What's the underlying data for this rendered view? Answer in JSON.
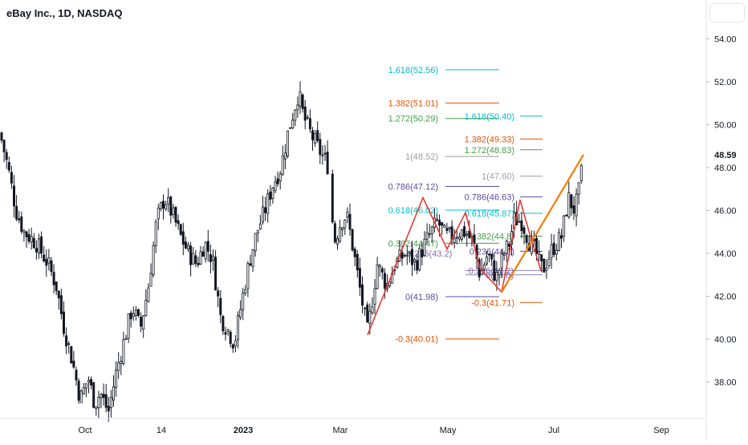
{
  "header": {
    "title": "eBay Inc., 1D, NASDAQ"
  },
  "price_axis": {
    "ticks": [
      "54.00",
      "52.00",
      "50.00",
      "48.00",
      "46.00",
      "44.00",
      "42.00",
      "40.00",
      "38.00"
    ],
    "last_price": "48.59"
  },
  "time_axis": {
    "ticks": [
      "Oct",
      "14",
      "2023",
      "Mar",
      "May",
      "Jul",
      "Sep"
    ]
  },
  "colors": {
    "up": "#131722",
    "down": "#131722",
    "orange": "#f57c00",
    "red": "#e53935",
    "teal": "#00bcd4",
    "green": "#43a047",
    "purple": "#5e4b9c",
    "gray": "#9e9e9e",
    "darkorange": "#e65100"
  },
  "chart_data": {
    "type": "candlestick",
    "symbol": "eBay Inc., 1D, NASDAQ",
    "y_range": [
      36.2,
      54.8
    ],
    "x_ticks": [
      "Oct",
      "14",
      "2023",
      "Mar",
      "May",
      "Jul",
      "Sep"
    ],
    "y_ticks": [
      54,
      52,
      50,
      48,
      46,
      44,
      42,
      40,
      38
    ],
    "last_price": 48.59,
    "price_path": [
      [
        0,
        49.6
      ],
      [
        10,
        48.0
      ],
      [
        20,
        46.0
      ],
      [
        30,
        45.0
      ],
      [
        45,
        44.5
      ],
      [
        60,
        43.5
      ],
      [
        70,
        42.5
      ],
      [
        80,
        40.5
      ],
      [
        90,
        39.0
      ],
      [
        100,
        37.2
      ],
      [
        110,
        38.2
      ],
      [
        118,
        37.0
      ],
      [
        125,
        37.5
      ],
      [
        135,
        36.6
      ],
      [
        145,
        38.5
      ],
      [
        155,
        40.0
      ],
      [
        165,
        41.5
      ],
      [
        175,
        40.5
      ],
      [
        185,
        42.5
      ],
      [
        195,
        45.5
      ],
      [
        205,
        46.6
      ],
      [
        215,
        45.8
      ],
      [
        225,
        44.8
      ],
      [
        235,
        44.0
      ],
      [
        245,
        43.5
      ],
      [
        255,
        44.5
      ],
      [
        265,
        43.7
      ],
      [
        275,
        41.0
      ],
      [
        283,
        40.5
      ],
      [
        292,
        39.8
      ],
      [
        300,
        41.5
      ],
      [
        310,
        43.5
      ],
      [
        320,
        45.0
      ],
      [
        330,
        46.0
      ],
      [
        340,
        47.2
      ],
      [
        350,
        48.0
      ],
      [
        358,
        49.5
      ],
      [
        365,
        50.5
      ],
      [
        372,
        51.5
      ],
      [
        378,
        50.4
      ],
      [
        388,
        49.5
      ],
      [
        398,
        48.8
      ],
      [
        410,
        48.0
      ],
      [
        416,
        44.5
      ],
      [
        425,
        45.5
      ],
      [
        432,
        45.8
      ],
      [
        440,
        44.2
      ],
      [
        450,
        42.0
      ],
      [
        458,
        40.3
      ],
      [
        470,
        43.5
      ],
      [
        482,
        42.5
      ],
      [
        492,
        43.5
      ],
      [
        505,
        44.0
      ],
      [
        518,
        43.5
      ],
      [
        530,
        44.5
      ],
      [
        545,
        45.5
      ],
      [
        555,
        44.8
      ],
      [
        562,
        44.8
      ],
      [
        570,
        45.0
      ],
      [
        580,
        45.0
      ],
      [
        590,
        44.5
      ],
      [
        598,
        43.0
      ],
      [
        608,
        44.0
      ],
      [
        618,
        42.8
      ],
      [
        628,
        44.0
      ],
      [
        635,
        44.5
      ],
      [
        640,
        45.6
      ],
      [
        650,
        45.5
      ],
      [
        660,
        44.5
      ],
      [
        668,
        44.0
      ],
      [
        676,
        43.2
      ],
      [
        688,
        44.2
      ],
      [
        700,
        44.8
      ],
      [
        708,
        46.6
      ],
      [
        716,
        46.0
      ],
      [
        722,
        47.0
      ],
      [
        727,
        48.6
      ]
    ],
    "zigzag_red": [
      [
        458,
        40.2
      ],
      [
        527,
        46.6
      ],
      [
        557,
        44.2
      ],
      [
        580,
        45.9
      ],
      [
        598,
        43.3
      ],
      [
        625,
        42.2
      ],
      [
        648,
        46.5
      ],
      [
        660,
        44.9
      ],
      [
        674,
        43.2
      ]
    ],
    "zigzag_orange": [
      [
        625,
        42.2
      ],
      [
        727,
        48.6
      ]
    ],
    "fib_set_1": [
      {
        "label": "1.618(52.56)",
        "value": 52.56,
        "color": "#00bcd4"
      },
      {
        "label": "1.382(51.01)",
        "value": 51.01,
        "color": "#e65100"
      },
      {
        "label": "1.272(50.29)",
        "value": 50.29,
        "color": "#43a047"
      },
      {
        "label": "1(48.52)",
        "value": 48.52,
        "color": "#9e9e9e"
      },
      {
        "label": "0.786(47.12)",
        "value": 47.12,
        "color": "#5e4b9c"
      },
      {
        "label": "0.618(46.02)",
        "value": 46.02,
        "color": "#00bcd4"
      },
      {
        "label": "0.382(44.47)",
        "value": 44.47,
        "color": "#43a047"
      },
      {
        "label": "0(41.98)",
        "value": 41.98,
        "color": "#5e4b9c"
      },
      {
        "label": "-0.3(40.01)",
        "value": 40.01,
        "color": "#e65100"
      }
    ],
    "fib_set_2": [
      {
        "label": "1.618(50.40)",
        "value": 50.4,
        "color": "#00bcd4"
      },
      {
        "label": "1.382(49.33)",
        "value": 49.33,
        "color": "#e65100"
      },
      {
        "label": "1.272(48.83)",
        "value": 48.83,
        "color": "#43a047"
      },
      {
        "label": "1(47.60)",
        "value": 47.6,
        "color": "#9e9e9e"
      },
      {
        "label": "0.786(46.63)",
        "value": 46.63,
        "color": "#5e4b9c"
      },
      {
        "label": "0.618(45.87)",
        "value": 45.87,
        "color": "#00bcd4"
      },
      {
        "label": "0.382(44.8)",
        "value": 44.8,
        "color": "#43a047"
      },
      {
        "label": "0.236(44.1)",
        "value": 44.1,
        "color": "#5e4b9c"
      },
      {
        "label": "-0.3(41.71)",
        "value": 41.71,
        "color": "#e65100"
      }
    ],
    "fib_set_3_labels": [
      "0.236(43.2)",
      "0(43.0)"
    ]
  }
}
